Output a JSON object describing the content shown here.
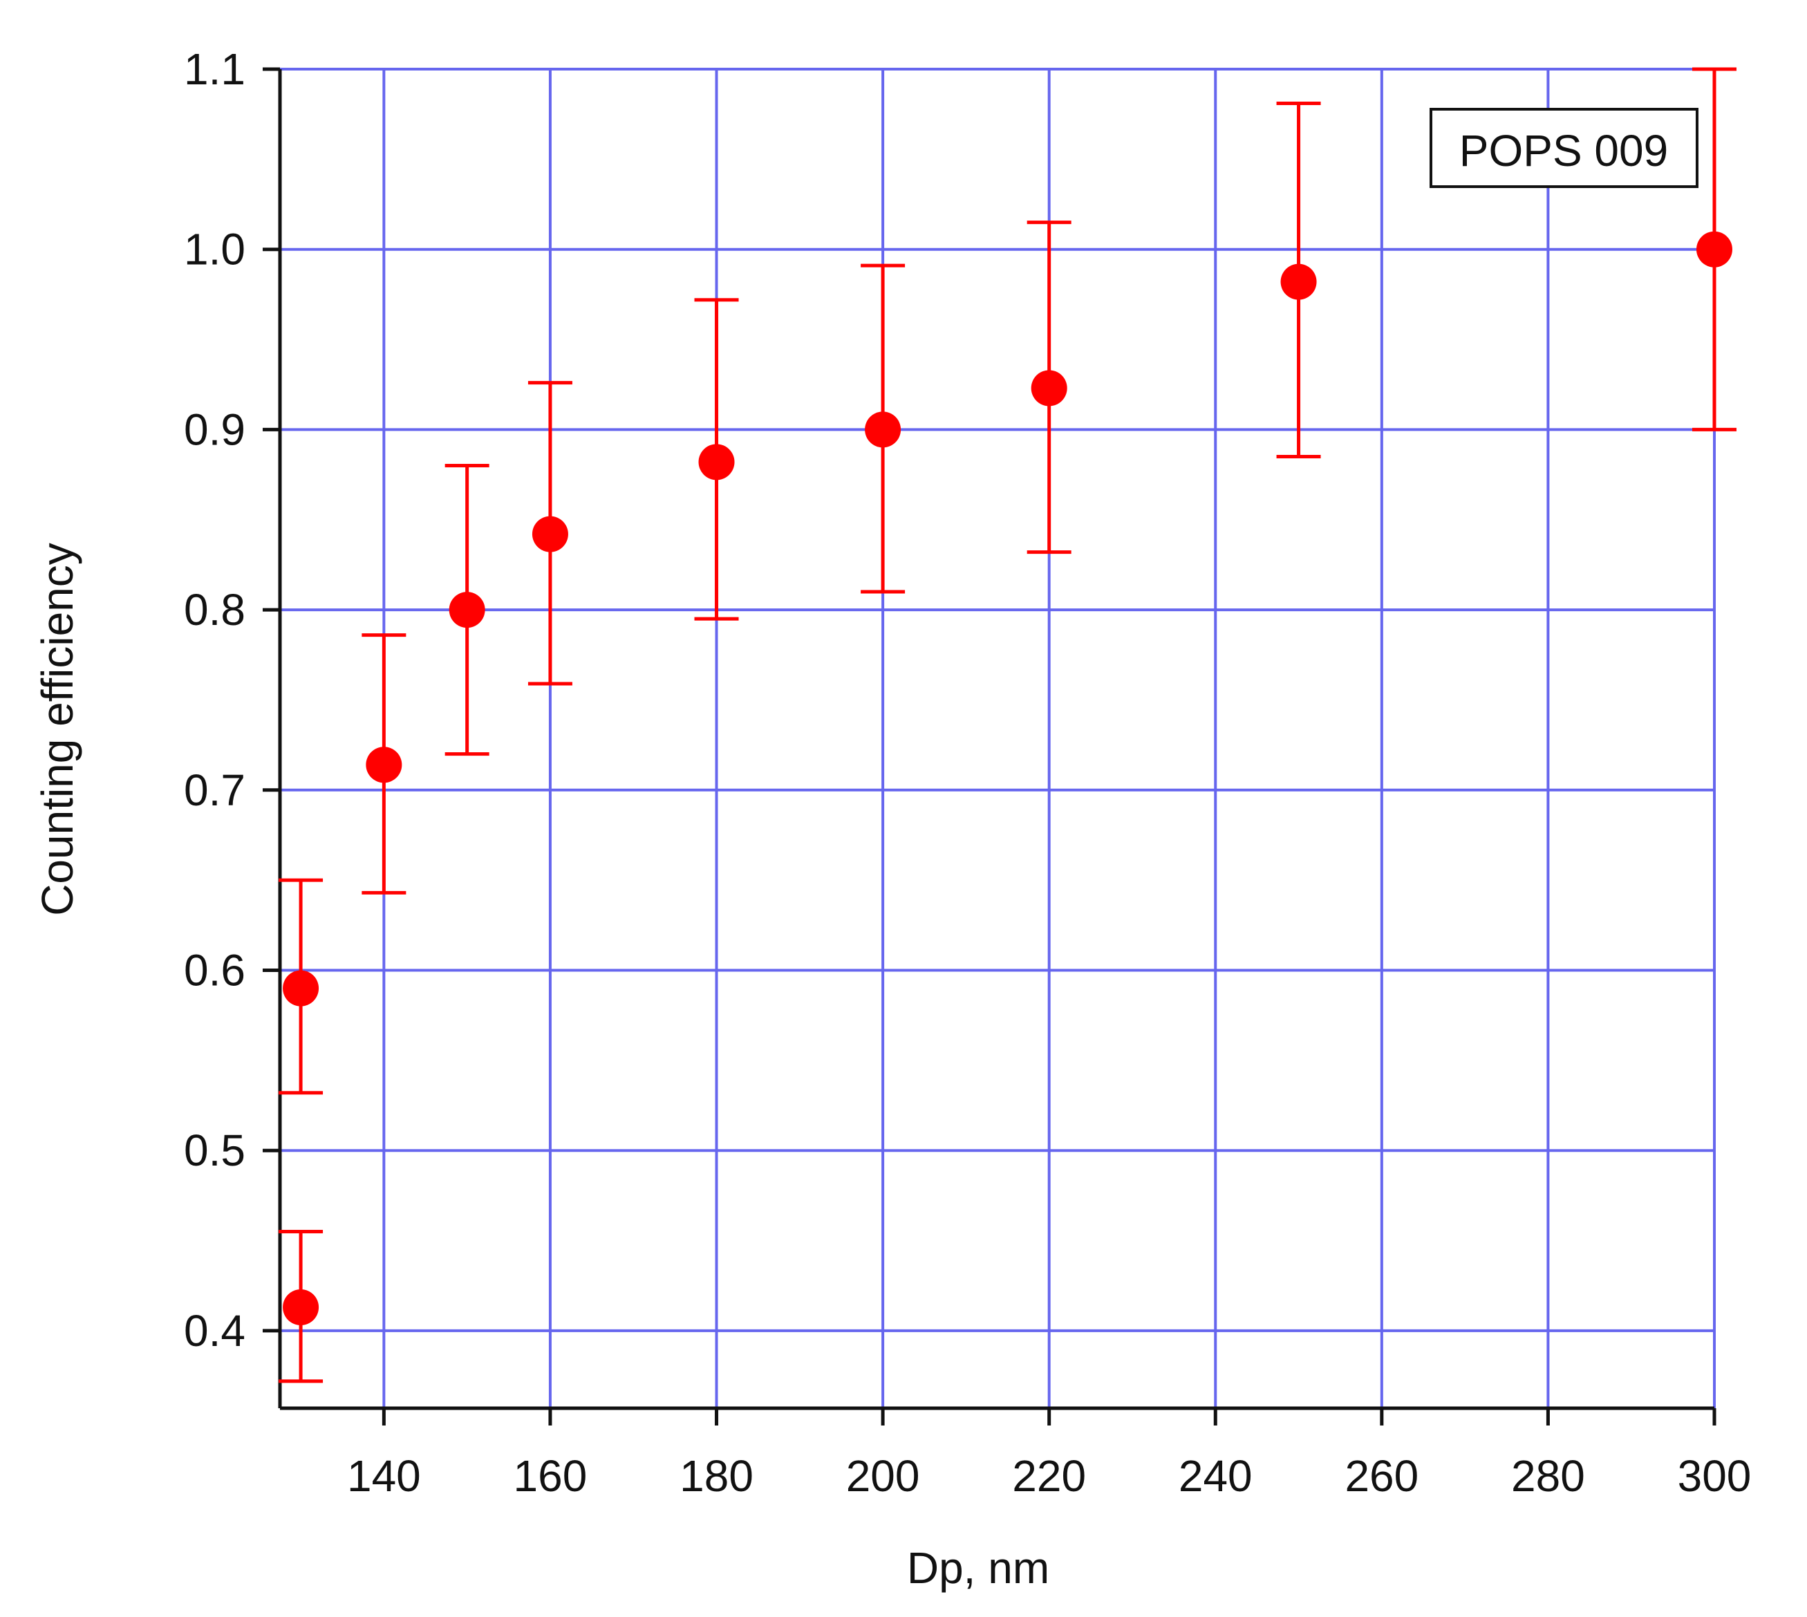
{
  "chart_data": {
    "type": "scatter",
    "xlabel": "Dp, nm",
    "ylabel": "Counting efficiency",
    "legend_label": "POPS 009",
    "legend_placement": "top-right",
    "grid": true,
    "xlim": [
      127.5,
      300
    ],
    "ylim": [
      0.357,
      1.1
    ],
    "x_ticks": [
      140,
      160,
      180,
      200,
      220,
      240,
      260,
      280,
      300
    ],
    "y_ticks": [
      0.4,
      0.5,
      0.6,
      0.7,
      0.8,
      0.9,
      1.0,
      1.1
    ],
    "x_tick_labels": [
      "140",
      "160",
      "180",
      "200",
      "220",
      "240",
      "260",
      "280",
      "300"
    ],
    "y_tick_labels": [
      "0.4",
      "0.5",
      "0.6",
      "0.7",
      "0.8",
      "0.9",
      "1.0",
      "1.1"
    ],
    "points": [
      {
        "x": 130,
        "y": 0.59,
        "err_low": 0.532,
        "err_high": 0.65
      },
      {
        "x": 130,
        "y": 0.413,
        "err_low": 0.372,
        "err_high": 0.455
      },
      {
        "x": 140,
        "y": 0.714,
        "err_low": 0.643,
        "err_high": 0.786
      },
      {
        "x": 150,
        "y": 0.8,
        "err_low": 0.72,
        "err_high": 0.88
      },
      {
        "x": 160,
        "y": 0.842,
        "err_low": 0.759,
        "err_high": 0.926
      },
      {
        "x": 180,
        "y": 0.882,
        "err_low": 0.795,
        "err_high": 0.972
      },
      {
        "x": 200,
        "y": 0.9,
        "err_low": 0.81,
        "err_high": 0.991
      },
      {
        "x": 220,
        "y": 0.923,
        "err_low": 0.832,
        "err_high": 1.015
      },
      {
        "x": 250,
        "y": 0.982,
        "err_low": 0.885,
        "err_high": 1.081
      },
      {
        "x": 300,
        "y": 1.0,
        "err_low": 0.9,
        "err_high": 1.1
      }
    ],
    "colors": {
      "points": "#ff0000",
      "grid": "#6666ee",
      "axis": "#111111",
      "text": "#111111"
    }
  }
}
